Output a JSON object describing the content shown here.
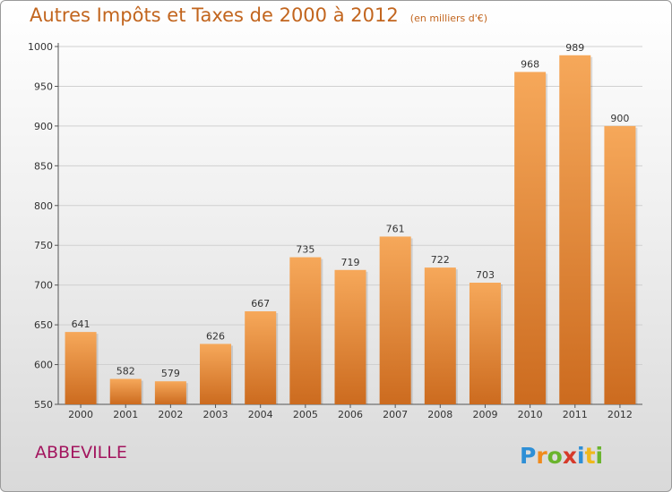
{
  "header": {
    "title": "Autres Impôts et Taxes de 2000 à 2012",
    "unit_note": "(en milliers d'€)"
  },
  "footer": {
    "city": "ABBEVILLE",
    "logo_text": "Proxiti"
  },
  "colors": {
    "bar_top": "#f6a85a",
    "bar_bottom": "#cc6b1f",
    "title": "#c2651e",
    "city": "#a3165f"
  },
  "chart_data": {
    "type": "bar",
    "title": "Autres Impôts et Taxes de 2000 à 2012",
    "subtitle": "(en milliers d'€)",
    "categories": [
      "2000",
      "2001",
      "2002",
      "2003",
      "2004",
      "2005",
      "2006",
      "2007",
      "2008",
      "2009",
      "2010",
      "2011",
      "2012"
    ],
    "values": [
      641,
      582,
      579,
      626,
      667,
      735,
      719,
      761,
      722,
      703,
      968,
      989,
      900
    ],
    "ylim": [
      550,
      1000
    ],
    "yticks": [
      550,
      600,
      650,
      700,
      750,
      800,
      850,
      900,
      950,
      1000
    ],
    "grid": true,
    "legend": "none"
  }
}
